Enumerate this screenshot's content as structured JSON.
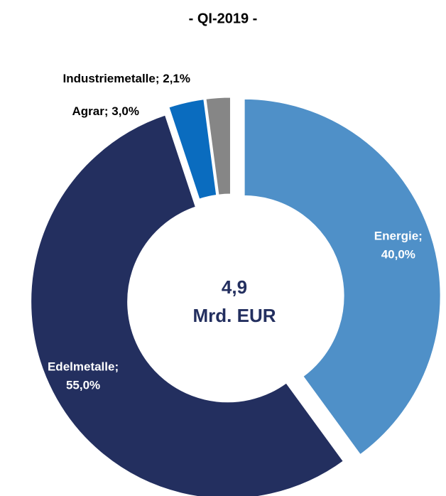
{
  "chart_data": {
    "type": "donut",
    "title": "- QI-2019 -",
    "categories": [
      "Energie",
      "Edelmetalle",
      "Agrar",
      "Industriemetalle"
    ],
    "values": [
      40.0,
      55.0,
      3.0,
      2.1
    ],
    "value_labels": [
      "40,0%",
      "55,0%",
      "3,0%",
      "2,1%"
    ],
    "label_separator": ";",
    "colors": [
      "#4f90c8",
      "#232f5f",
      "#0a6cbf",
      "#868686"
    ],
    "center_text": [
      "4,9",
      "Mrd. EUR"
    ]
  }
}
